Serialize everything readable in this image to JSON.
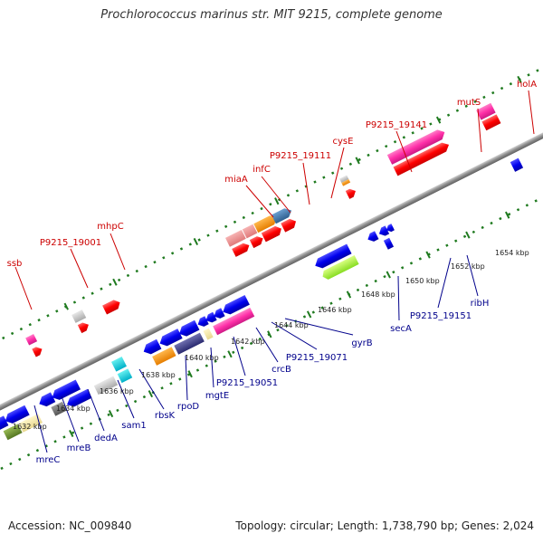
{
  "header": {
    "title": "Prochlorococcus marinus str. MIT 9215, complete genome"
  },
  "footer": {
    "accession": "Accession: NC_009840",
    "topology": "Topology: circular; Length: 1,738,790 bp; Genes: 2,024"
  },
  "colors": {
    "backbone": "#8c8c8c",
    "dots": "#1f7a1f",
    "label_top": "#cc0000",
    "label_bottom": "#00008b"
  },
  "ticks": [
    "1632 kbp",
    "1634 kbp",
    "1636 kbp",
    "1638 kbp",
    "1640 kbp",
    "1642 kbp",
    "1644 kbp",
    "1646 kbp",
    "1648 kbp",
    "1650 kbp",
    "1652 kbp",
    "1654 kbp"
  ],
  "genes_forward": [
    "ssb",
    "P9215_19001",
    "mhpC",
    "miaA",
    "infC",
    "P9215_19111",
    "cysE",
    "P9215_19141",
    "mutS",
    "holA"
  ],
  "genes_reverse": [
    "mreC",
    "mreB",
    "dedA",
    "sam1",
    "rbsK",
    "rpoD",
    "mgtE",
    "P9215_19051",
    "crcB",
    "P9215_19071",
    "gyrB",
    "secA",
    "P9215_19151",
    "ribH"
  ]
}
